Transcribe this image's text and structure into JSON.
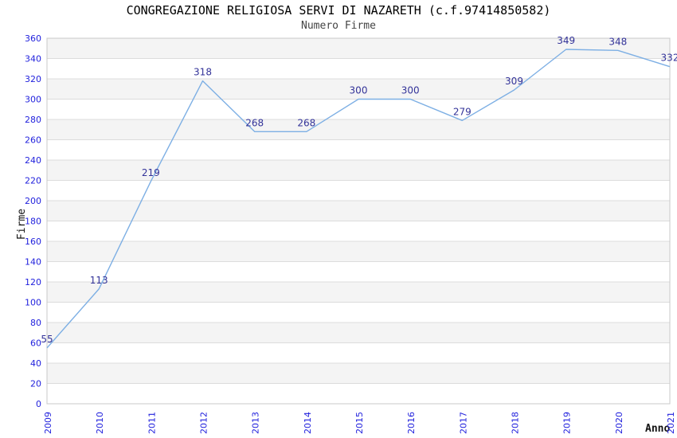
{
  "chart_data": {
    "type": "line",
    "title": "CONGREGAZIONE RELIGIOSA SERVI DI NAZARETH (c.f.97414850582)",
    "subtitle": "Numero Firme",
    "xlabel": "Anno",
    "ylabel": "Firme",
    "categories": [
      "2009",
      "2010",
      "2011",
      "2012",
      "2013",
      "2014",
      "2015",
      "2016",
      "2017",
      "2018",
      "2019",
      "2020",
      "2021"
    ],
    "series": [
      {
        "name": "Numero Firme",
        "values": [
          55,
          113,
          219,
          318,
          268,
          268,
          300,
          300,
          279,
          309,
          349,
          348,
          332
        ]
      }
    ],
    "ylim": [
      0,
      360
    ],
    "ytick_step": 20,
    "grid": "horizontal-only",
    "bands": "alternating gray/white every 20 units, gray on 20-40, 60-80, ... 340-360",
    "legend_position": "none",
    "point_labels_visible": true,
    "colors": {
      "line": "#7dafe4",
      "tick_labels": "#2222dd",
      "point_labels": "#333399",
      "band_fill": "#f4f4f4",
      "gridline": "#dcdcdc",
      "plot_border": "#c8c8c8",
      "title": "#000000",
      "subtitle": "#444444",
      "axis_titles": "#111111",
      "background": "#ffffff"
    }
  }
}
